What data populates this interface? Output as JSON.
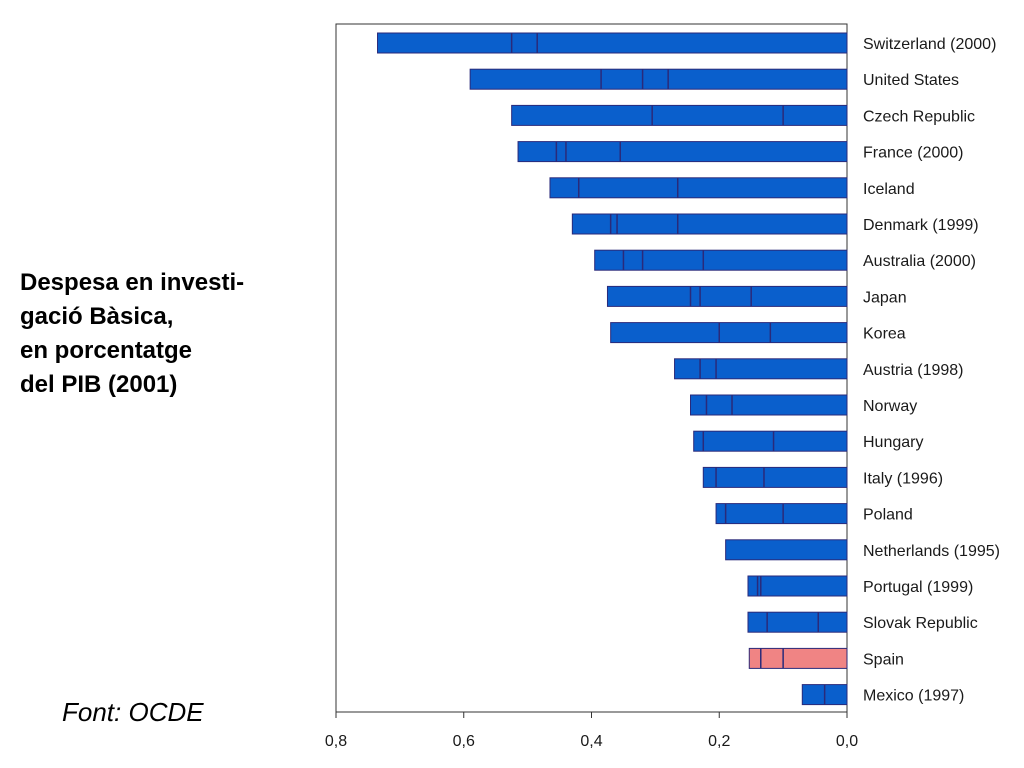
{
  "title_lines": [
    "Despesa en investi-",
    "gació Bàsica,",
    "en porcentatge",
    "del PIB (2001)"
  ],
  "source": "Font: OCDE",
  "colors": {
    "bar": "#0a5fcc",
    "bar_edge": "#2a2a7a",
    "highlight": "#f08484"
  },
  "chart_data": {
    "type": "bar",
    "orientation": "horizontal",
    "title": "Despesa en investigació Bàsica, en porcentatge del PIB (2001)",
    "xlim": [
      0.8,
      0.0
    ],
    "xticks": [
      "0,8",
      "0,6",
      "0,4",
      "0,2",
      "0,0"
    ],
    "xtick_values": [
      0.8,
      0.6,
      0.4,
      0.2,
      0.0
    ],
    "highlight": "Spain",
    "bars": [
      {
        "category": "Switzerland (2000)",
        "value": 0.735,
        "dividers": [
          0.525,
          0.485
        ]
      },
      {
        "category": "United States",
        "value": 0.59,
        "dividers": [
          0.385,
          0.32,
          0.28
        ]
      },
      {
        "category": "Czech Republic",
        "value": 0.525,
        "dividers": [
          0.305,
          0.1
        ]
      },
      {
        "category": "France (2000)",
        "value": 0.515,
        "dividers": [
          0.455,
          0.44,
          0.355
        ]
      },
      {
        "category": "Iceland",
        "value": 0.465,
        "dividers": [
          0.42,
          0.265
        ]
      },
      {
        "category": "Denmark (1999)",
        "value": 0.43,
        "dividers": [
          0.37,
          0.36,
          0.265
        ]
      },
      {
        "category": "Australia (2000)",
        "value": 0.395,
        "dividers": [
          0.35,
          0.32,
          0.225
        ]
      },
      {
        "category": "Japan",
        "value": 0.375,
        "dividers": [
          0.245,
          0.23,
          0.15
        ]
      },
      {
        "category": "Korea",
        "value": 0.37,
        "dividers": [
          0.2,
          0.12
        ]
      },
      {
        "category": "Austria (1998)",
        "value": 0.27,
        "dividers": [
          0.23,
          0.205
        ]
      },
      {
        "category": "Norway",
        "value": 0.245,
        "dividers": [
          0.22,
          0.18
        ]
      },
      {
        "category": "Hungary",
        "value": 0.24,
        "dividers": [
          0.225,
          0.115
        ]
      },
      {
        "category": "Italy (1996)",
        "value": 0.225,
        "dividers": [
          0.205,
          0.13
        ]
      },
      {
        "category": "Poland",
        "value": 0.205,
        "dividers": [
          0.19,
          0.1
        ]
      },
      {
        "category": "Netherlands (1995)",
        "value": 0.19,
        "dividers": []
      },
      {
        "category": "Portugal (1999)",
        "value": 0.155,
        "dividers": [
          0.14,
          0.135
        ]
      },
      {
        "category": "Slovak Republic",
        "value": 0.155,
        "dividers": [
          0.125,
          0.045
        ]
      },
      {
        "category": "Spain",
        "value": 0.153,
        "dividers": [
          0.135,
          0.1
        ]
      },
      {
        "category": "Mexico (1997)",
        "value": 0.07,
        "dividers": [
          0.035
        ]
      }
    ]
  }
}
